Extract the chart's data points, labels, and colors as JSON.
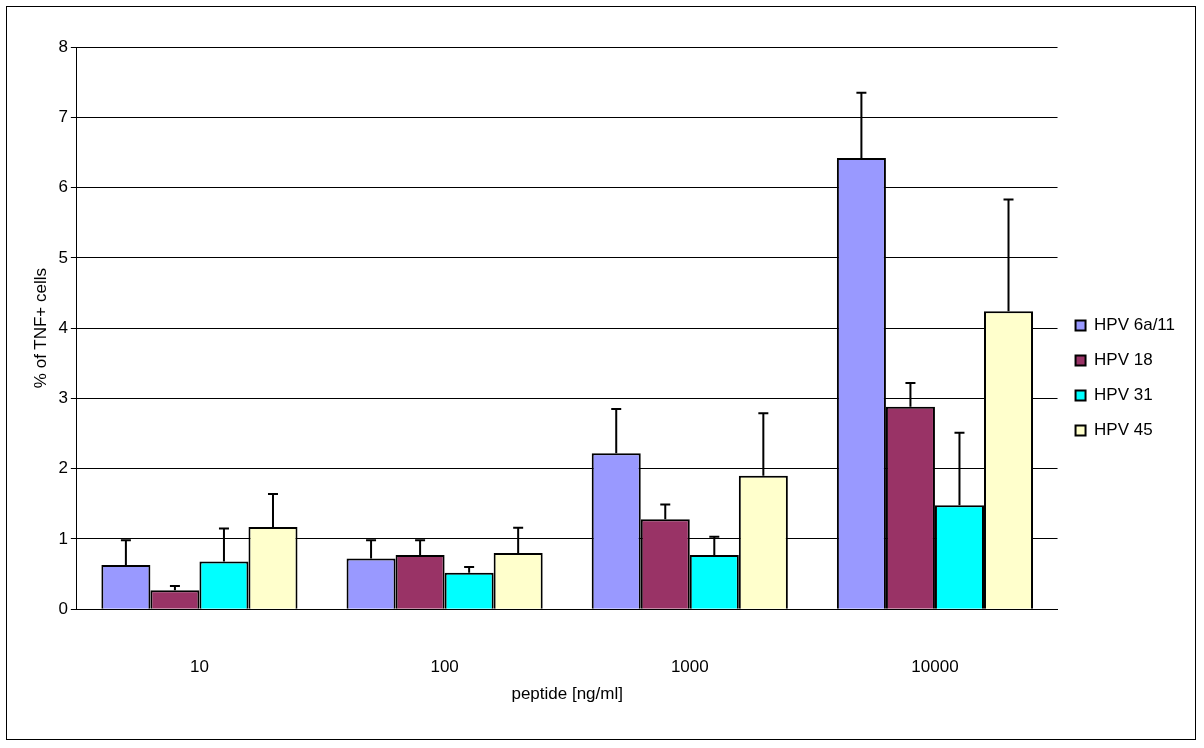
{
  "chart_data": {
    "type": "bar",
    "xlabel": "peptide [ng/ml]",
    "ylabel": "% of TNF+ cells",
    "categories": [
      "10",
      "100",
      "1000",
      "10000"
    ],
    "series": [
      {
        "name": "HPV 6a/11",
        "color": "#9999ff",
        "values": [
          0.63,
          0.72,
          2.22,
          6.42
        ],
        "errors": [
          [
            0.63,
            0.98
          ],
          [
            0.72,
            0.98
          ],
          [
            2.22,
            2.85
          ],
          [
            6.42,
            7.35
          ]
        ]
      },
      {
        "name": "HPV 18",
        "color": "#993366",
        "values": [
          0.27,
          0.77,
          1.28,
          2.88
        ],
        "errors": [
          [
            0.27,
            0.33
          ],
          [
            0.77,
            0.98
          ],
          [
            1.28,
            1.49
          ],
          [
            2.88,
            3.22
          ]
        ]
      },
      {
        "name": "HPV 31",
        "color": "#00ffff",
        "values": [
          0.68,
          0.52,
          0.77,
          1.48
        ],
        "errors": [
          [
            0.68,
            1.15
          ],
          [
            0.52,
            0.6
          ],
          [
            0.77,
            1.03
          ],
          [
            1.48,
            2.51
          ]
        ]
      },
      {
        "name": "HPV 45",
        "color": "#ffffcc",
        "values": [
          1.17,
          0.8,
          1.9,
          4.24
        ],
        "errors": [
          [
            1.17,
            1.64
          ],
          [
            0.8,
            1.16
          ],
          [
            1.9,
            2.79
          ],
          [
            4.24,
            5.83
          ]
        ]
      }
    ],
    "ylim": [
      0,
      8
    ],
    "yticks": [
      0,
      1,
      2,
      3,
      4,
      5,
      6,
      7,
      8
    ],
    "grid": "y",
    "legend": "right"
  }
}
